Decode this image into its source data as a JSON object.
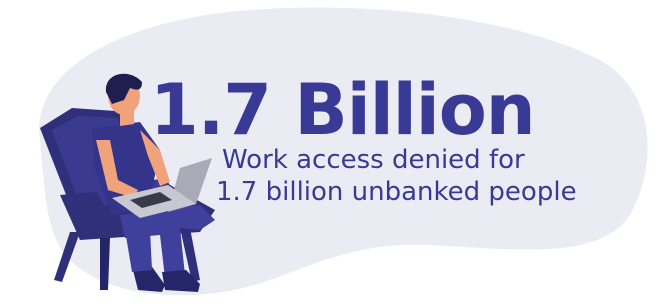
{
  "headline": "1.7 Billion",
  "subtitle": {
    "lines": [
      "Work access denied for",
      "1.7 billion unbanked people"
    ]
  }
}
